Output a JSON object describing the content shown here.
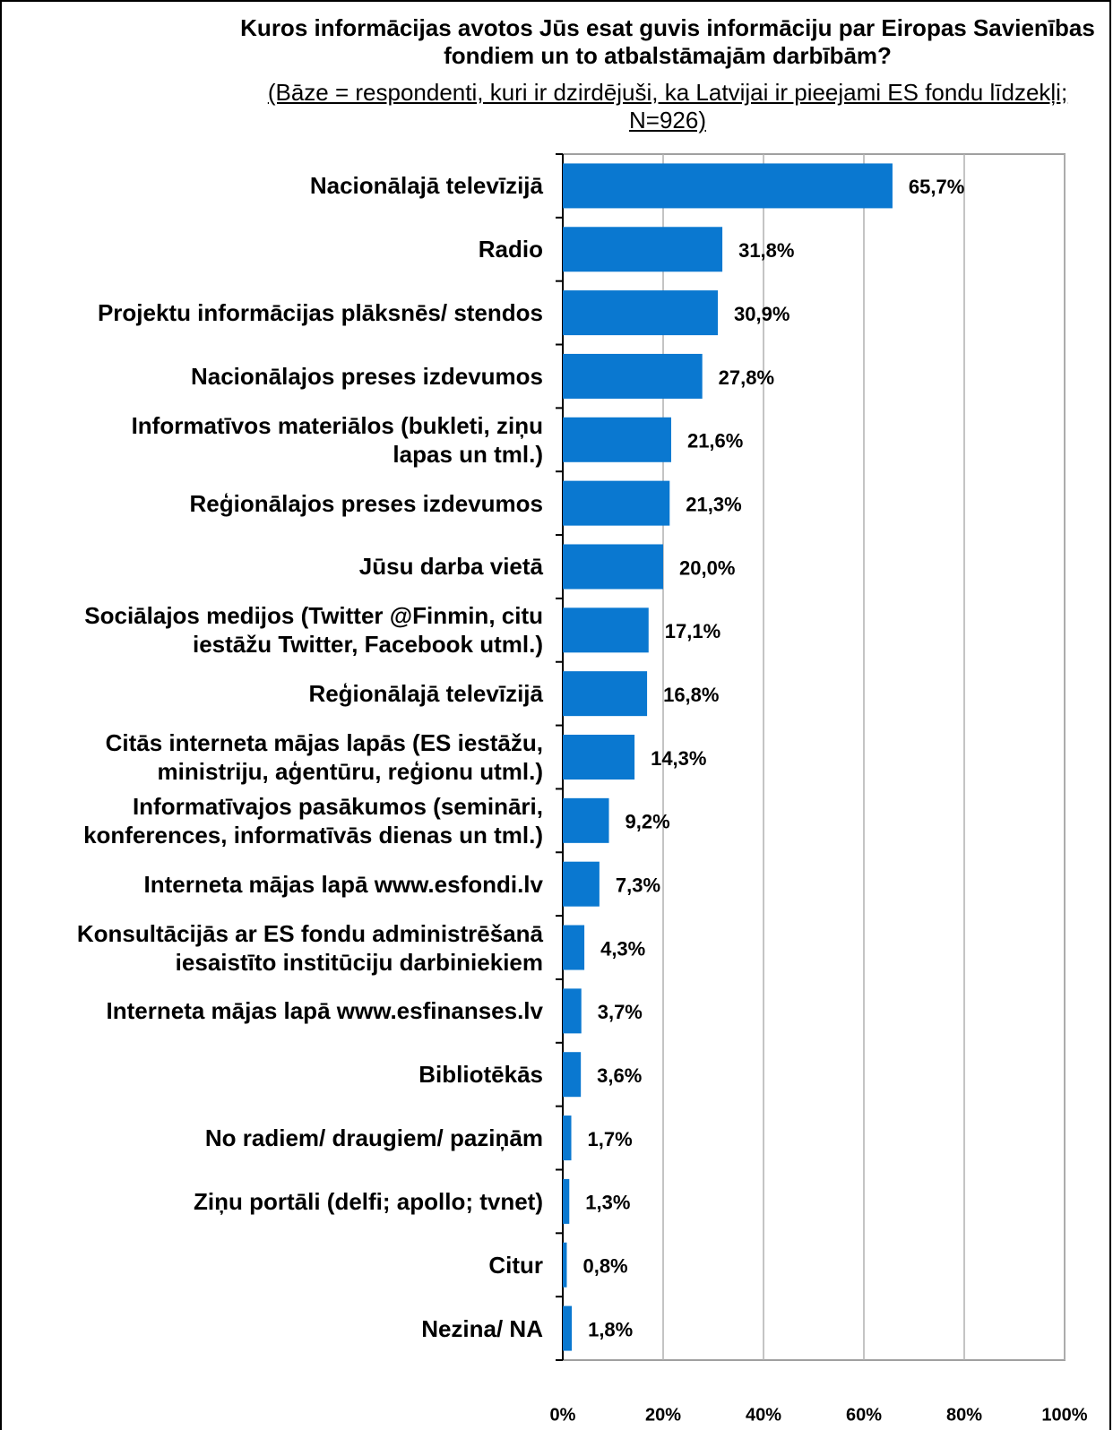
{
  "chart_data": {
    "type": "bar",
    "orientation": "horizontal",
    "title": "Kuros informācijas avotos Jūs esat guvis informāciju par Eiropas Savienības fondiem un to atbalstāmajām darbībām?",
    "subtitle": "(Bāze = respondenti, kuri ir dzirdējuši, ka Latvijai ir pieejami ES fondu līdzekļi; N=926)",
    "categories": [
      "Nacionālajā televīzijā",
      "Radio",
      "Projektu informācijas plāksnēs/ stendos",
      "Nacionālajos preses izdevumos",
      "Informatīvos materiālos (bukleti, ziņu\nlapas un tml.)",
      "Reģionālajos preses izdevumos",
      "Jūsu darba vietā",
      "Sociālajos medijos (Twitter @Finmin, citu\niestāžu Twitter, Facebook utml.)",
      "Reģionālajā televīzijā",
      "Citās interneta mājas lapās (ES iestāžu,\nministriju, aģentūru, reģionu utml.)",
      "Informatīvajos pasākumos (semināri,\nkonferences, informatīvās dienas un tml.)",
      "Interneta mājas lapā www.esfondi.lv",
      "Konsultācijās ar ES fondu administrēšanā\niesaistīto institūciju darbiniekiem",
      "Interneta mājas lapā www.esfinanses.lv",
      "Bibliotēkās",
      "No radiem/ draugiem/ paziņām",
      "Ziņu portāli (delfi; apollo; tvnet)",
      "Citur",
      "Nezina/ NA"
    ],
    "values": [
      65.7,
      31.8,
      30.9,
      27.8,
      21.6,
      21.3,
      20.0,
      17.1,
      16.8,
      14.3,
      9.2,
      7.3,
      4.3,
      3.7,
      3.6,
      1.7,
      1.3,
      0.8,
      1.8
    ],
    "value_labels": [
      "65,7%",
      "31,8%",
      "30,9%",
      "27,8%",
      "21,6%",
      "21,3%",
      "20,0%",
      "17,1%",
      "16,8%",
      "14,3%",
      "9,2%",
      "7,3%",
      "4,3%",
      "3,7%",
      "3,6%",
      "1,7%",
      "1,3%",
      "0,8%",
      "1,8%"
    ],
    "color": "#0a78d0",
    "xlim": [
      0,
      100
    ],
    "xticks": [
      {
        "value": 0,
        "label": "0%"
      },
      {
        "value": 20,
        "label": "20%"
      },
      {
        "value": 40,
        "label": "40%"
      },
      {
        "value": 60,
        "label": "60%"
      },
      {
        "value": 80,
        "label": "80%"
      },
      {
        "value": 100,
        "label": "100%"
      }
    ],
    "grid": true
  }
}
